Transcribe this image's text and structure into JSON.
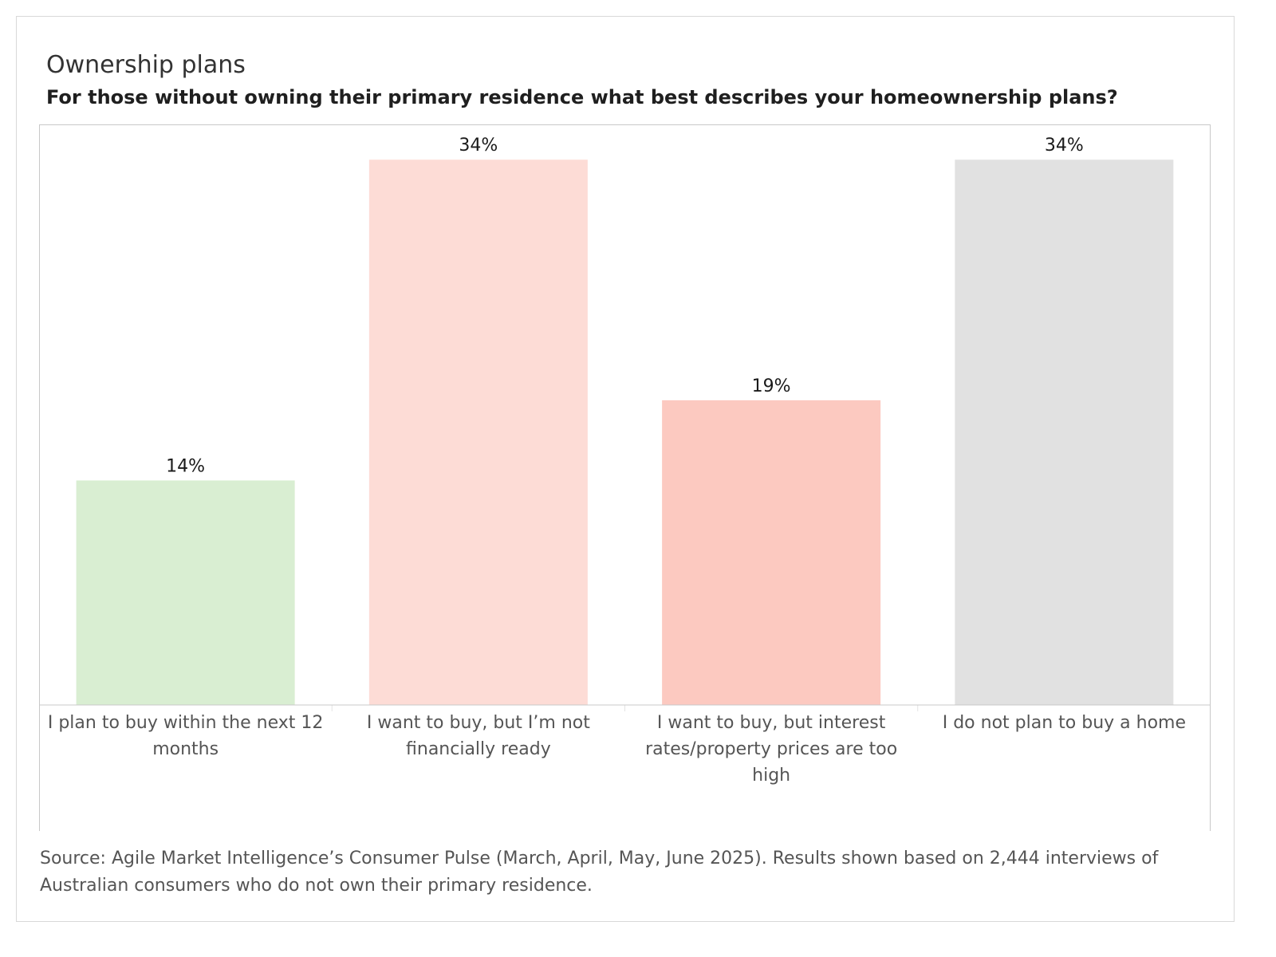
{
  "title": "Ownership plans",
  "subtitle": "For those without owning their primary residence what best describes your homeownership plans?",
  "source": "Source: Agile Market Intelligence’s Consumer Pulse (March, April, May, June 2025). Results shown based on 2,444 interviews of Australian consumers who do not own their primary residence.",
  "chart_data": {
    "type": "bar",
    "title": "Ownership plans",
    "subtitle": "For those without owning their primary residence what best describes your homeownership plans?",
    "categories": [
      "I plan to buy within the next 12 months",
      "I want to buy, but I’m not financially ready",
      "I want to buy, but interest rates/property prices are too high",
      "I do not plan to buy a home"
    ],
    "values": [
      14,
      34,
      19,
      34
    ],
    "data_labels": [
      "14%",
      "34%",
      "19%",
      "34%"
    ],
    "colors": [
      "#d9eed2",
      "#fddcd6",
      "#fcc9c0",
      "#e1e1e1"
    ],
    "ylim": [
      0,
      36
    ],
    "grid": false,
    "legend": "none"
  }
}
